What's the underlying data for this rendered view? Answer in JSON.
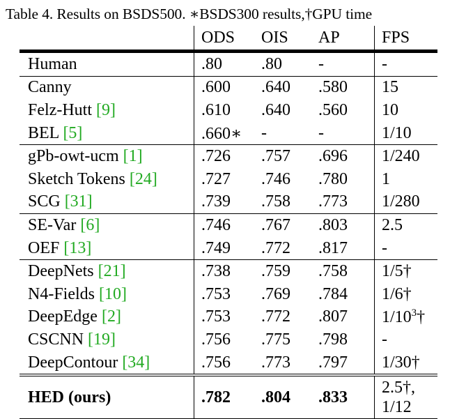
{
  "caption": "Table 4. Results on BSDS500. ∗BSDS300 results,†GPU time",
  "columns": {
    "method": "",
    "ods": "ODS",
    "ois": "OIS",
    "ap": "AP",
    "fps": "FPS"
  },
  "rows": [
    {
      "method": "Human",
      "cite": "",
      "ods": ".80",
      "ois": ".80",
      "ap": "-",
      "fps": "-"
    },
    {
      "method": "Canny",
      "cite": "",
      "ods": ".600",
      "ois": ".640",
      "ap": ".580",
      "fps": "15"
    },
    {
      "method": "Felz-Hutt",
      "cite": "[9]",
      "ods": ".610",
      "ois": ".640",
      "ap": ".560",
      "fps": "10"
    },
    {
      "method": "BEL",
      "cite": "[5]",
      "ods": ".660∗",
      "ois": "-",
      "ap": "-",
      "fps": "1/10"
    },
    {
      "method": "gPb-owt-ucm",
      "cite": "[1]",
      "ods": ".726",
      "ois": ".757",
      "ap": ".696",
      "fps": "1/240"
    },
    {
      "method": "Sketch Tokens",
      "cite": "[24]",
      "ods": ".727",
      "ois": ".746",
      "ap": ".780",
      "fps": "1"
    },
    {
      "method": "SCG",
      "cite": "[31]",
      "ods": ".739",
      "ois": ".758",
      "ap": ".773",
      "fps": "1/280"
    },
    {
      "method": "SE-Var",
      "cite": "[6]",
      "ods": ".746",
      "ois": ".767",
      "ap": ".803",
      "fps": "2.5"
    },
    {
      "method": "OEF",
      "cite": "[13]",
      "ods": ".749",
      "ois": ".772",
      "ap": ".817",
      "fps": "-"
    },
    {
      "method": "DeepNets",
      "cite": "[21]",
      "ods": ".738",
      "ois": ".759",
      "ap": ".758",
      "fps": "1/5†"
    },
    {
      "method": "N4-Fields",
      "cite": "[10]",
      "ods": ".753",
      "ois": ".769",
      "ap": ".784",
      "fps": "1/6†"
    },
    {
      "method": "DeepEdge",
      "cite": "[2]",
      "ods": ".753",
      "ois": ".772",
      "ap": ".807",
      "fps_base": "1/10",
      "fps_exp": "3",
      "fps_mark": "†"
    },
    {
      "method": "CSCNN",
      "cite": "[19]",
      "ods": ".756",
      "ois": ".775",
      "ap": ".798",
      "fps": "-"
    },
    {
      "method": "DeepContour",
      "cite": "[34]",
      "ods": ".756",
      "ois": ".773",
      "ap": ".797",
      "fps": "1/30†"
    },
    {
      "method": "HED (ours)",
      "cite": "",
      "ods": ".782",
      "ois": ".804",
      "ap": ".833",
      "fps_line1": "2.5†,",
      "fps_line2": "1/12"
    }
  ],
  "colors": {
    "citation": "#22aa22",
    "text": "#000000"
  }
}
